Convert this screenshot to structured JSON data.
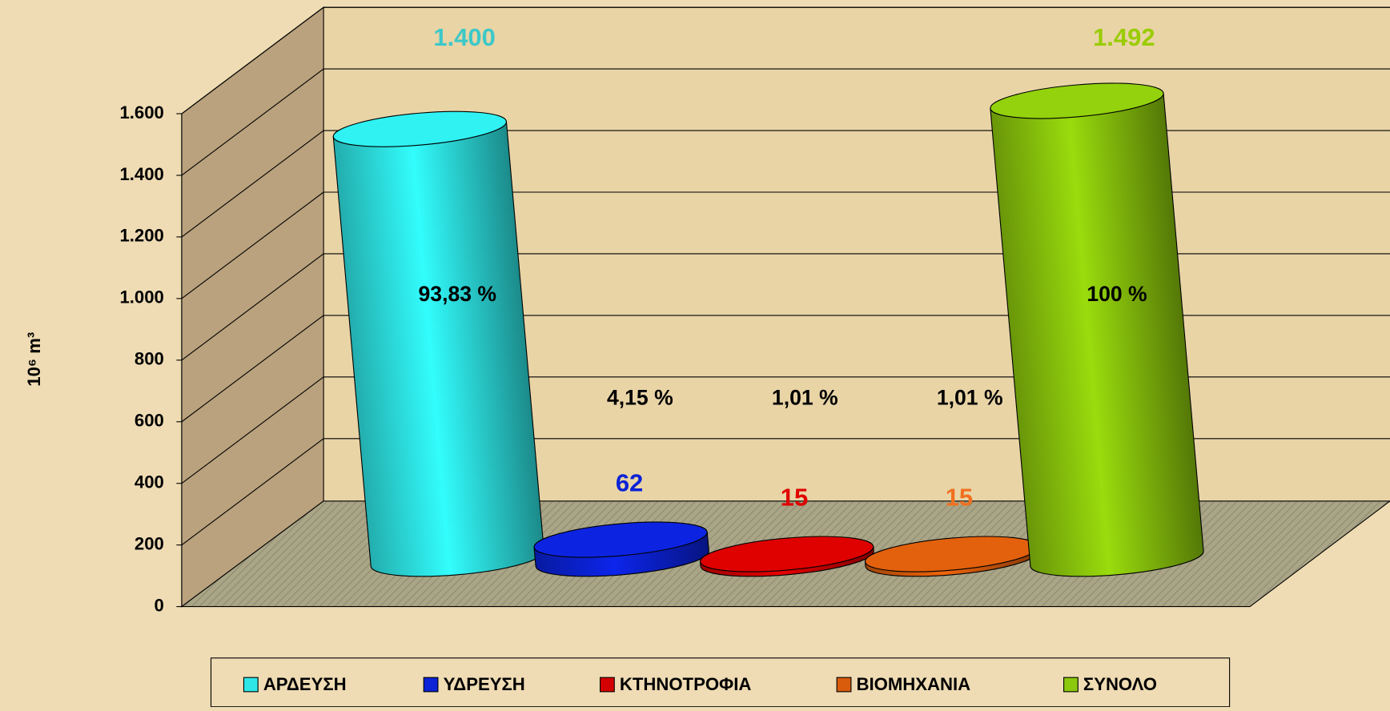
{
  "chart_data": {
    "type": "cylinder",
    "y_label": "10⁶ m³",
    "categories": [
      "ΑΡΔΕΥΣΗ",
      "ΥΔΡΕΥΣΗ",
      "ΚΤΗΝΟΤΡΟΦΙΑ",
      "ΒΙΟΜΗΧΑΝΙΑ",
      "ΣΥΝΟΛΟ"
    ],
    "values": [
      1400,
      62,
      15,
      15,
      1492
    ],
    "value_labels": [
      "1.400",
      "62",
      "15",
      "15",
      "1.492"
    ],
    "percentages": [
      93.83,
      4.15,
      1.01,
      1.01,
      100
    ],
    "percentage_labels": [
      "93,83 %",
      "4,15 %",
      "1,01 %",
      "1,01 %",
      "100 %"
    ],
    "colors": [
      "#2ee6e6",
      "#0b22d6",
      "#d40000",
      "#d85c0c",
      "#8cc80c"
    ],
    "label_colors": [
      "#3cc8c8",
      "#0b22d6",
      "#e00000",
      "#f07020",
      "#99cc00"
    ],
    "ylim": [
      0,
      1600
    ],
    "yticks": [
      0,
      200,
      400,
      600,
      800,
      {
        "value": 1000,
        "label": "1.000"
      },
      {
        "value": 1200,
        "label": "1.200"
      },
      {
        "value": 1400,
        "label": "1.400"
      },
      {
        "value": 1600,
        "label": "1.600"
      }
    ],
    "grid": true,
    "legend": "bottom"
  }
}
